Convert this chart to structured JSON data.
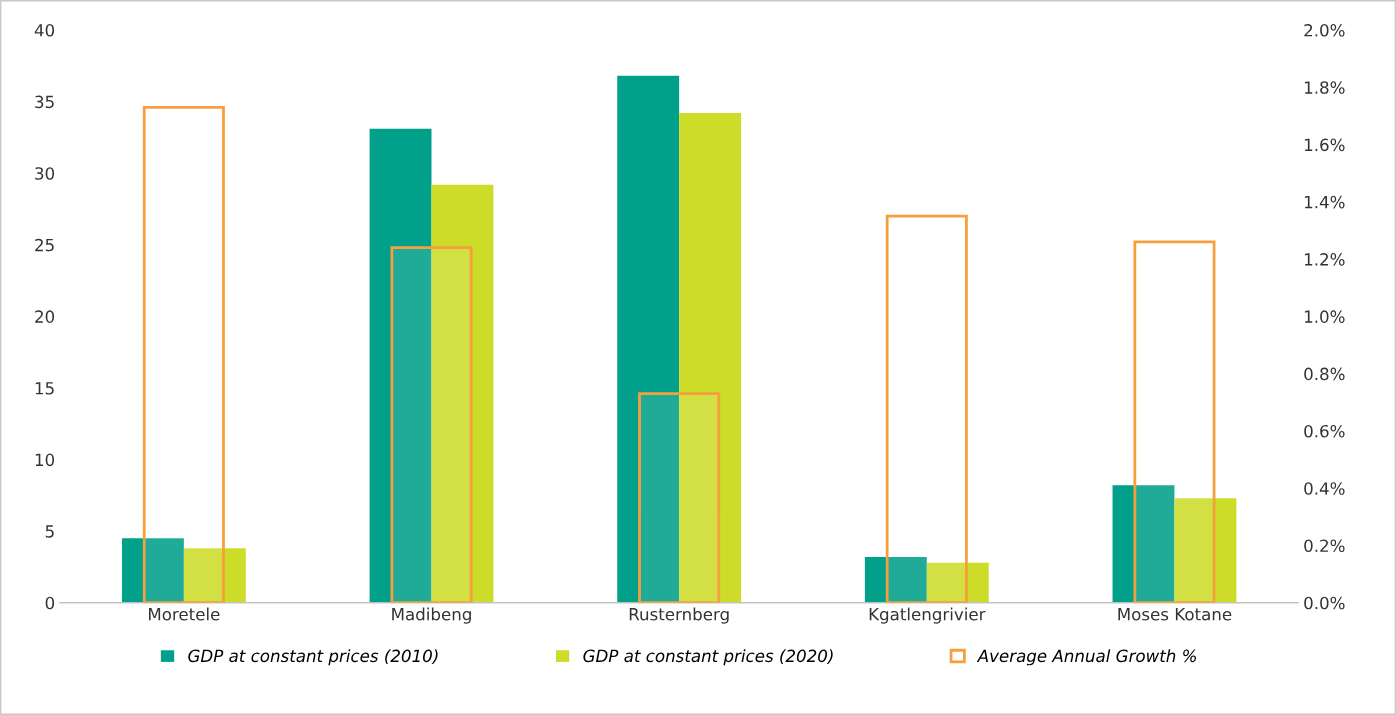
{
  "chart_data": {
    "type": "bar",
    "categories": [
      "Moretele",
      "Madibeng",
      "Rusternberg",
      "Kgatlengrivier",
      "Moses Kotane"
    ],
    "series": [
      {
        "name": "GDP at constant prices (2010)",
        "color": "#00a08a",
        "values": [
          4.5,
          33.1,
          36.8,
          3.2,
          8.2
        ]
      },
      {
        "name": "GDP at constant prices (2020)",
        "color": "#cddc29",
        "values": [
          3.8,
          29.2,
          34.2,
          2.8,
          7.3
        ]
      },
      {
        "name": "Average Annual Growth %",
        "color": "#f5a03c",
        "axis": "y2",
        "values": [
          1.73,
          1.24,
          0.73,
          1.35,
          1.26
        ]
      }
    ],
    "ylim": [
      0,
      40
    ],
    "yticks": [
      0,
      5,
      10,
      15,
      20,
      25,
      30,
      35,
      40
    ],
    "y2lim": [
      0,
      2.0
    ],
    "y2ticks": [
      {
        "value": 0,
        "label": "0.0%"
      },
      {
        "value": 0.2,
        "label": "0.2%"
      },
      {
        "value": 0.4,
        "label": "0.4%"
      },
      {
        "value": 0.6,
        "label": "0.6%"
      },
      {
        "value": 0.8,
        "label": "0.8%"
      },
      {
        "value": 1.0,
        "label": "1.0%"
      },
      {
        "value": 1.2,
        "label": "1.2%"
      },
      {
        "value": 1.4,
        "label": "1.4%"
      },
      {
        "value": 1.6,
        "label": "1.6%"
      },
      {
        "value": 1.8,
        "label": "1.8%"
      },
      {
        "value": 2.0,
        "label": "2.0%"
      }
    ],
    "grid": false,
    "legend": "bottom"
  }
}
